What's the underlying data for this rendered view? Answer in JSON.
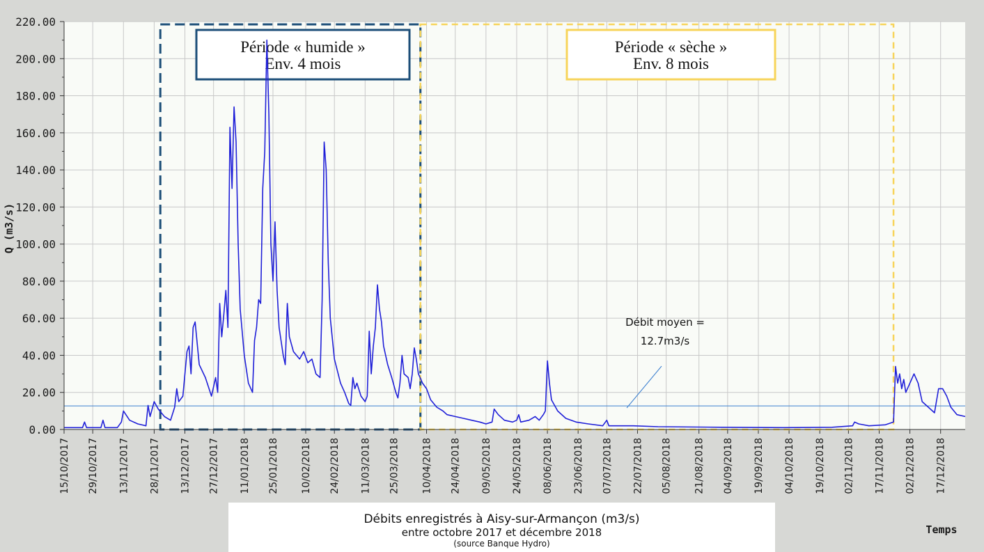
{
  "chart_data": {
    "type": "line",
    "ylabel": "Q (m3/s)",
    "xlabel": "Temps",
    "ylim": [
      0,
      220
    ],
    "y_ticks": [
      "0.00",
      "20.00",
      "40.00",
      "60.00",
      "80.00",
      "100.00",
      "120.00",
      "140.00",
      "160.00",
      "180.00",
      "200.00",
      "220.00"
    ],
    "xlim": [
      "2017-10-15",
      "2018-12-29"
    ],
    "x_tick_labels": [
      "15/10/2017",
      "29/10/2017",
      "13/11/2017",
      "28/11/2017",
      "13/12/2017",
      "27/12/2017",
      "11/01/2018",
      "25/01/2018",
      "10/02/2018",
      "24/02/2018",
      "11/03/2018",
      "25/03/2018",
      "10/04/2018",
      "24/04/2018",
      "09/05/2018",
      "24/05/2018",
      "08/06/2018",
      "23/06/2018",
      "07/07/2018",
      "22/07/2018",
      "05/08/2018",
      "21/08/2018",
      "04/09/2018",
      "19/09/2018",
      "04/10/2018",
      "19/10/2018",
      "02/11/2018",
      "17/11/2018",
      "02/12/2018",
      "17/12/2018"
    ],
    "grid": true,
    "series": [
      {
        "color": "#1f1fd8",
        "points": [
          [
            "2017-10-15",
            1
          ],
          [
            "2017-10-24",
            1
          ],
          [
            "2017-10-25",
            4
          ],
          [
            "2017-10-26",
            1
          ],
          [
            "2017-11-02",
            1
          ],
          [
            "2017-11-03",
            5
          ],
          [
            "2017-11-04",
            1
          ],
          [
            "2017-11-10",
            1
          ],
          [
            "2017-11-12",
            4
          ],
          [
            "2017-11-13",
            10
          ],
          [
            "2017-11-16",
            5
          ],
          [
            "2017-11-20",
            3
          ],
          [
            "2017-11-24",
            2
          ],
          [
            "2017-11-25",
            13
          ],
          [
            "2017-11-26",
            7
          ],
          [
            "2017-11-28",
            15
          ],
          [
            "2017-11-30",
            11
          ],
          [
            "2017-12-03",
            7
          ],
          [
            "2017-12-06",
            5
          ],
          [
            "2017-12-08",
            12
          ],
          [
            "2017-12-09",
            22
          ],
          [
            "2017-12-10",
            15
          ],
          [
            "2017-12-12",
            18
          ],
          [
            "2017-12-14",
            42
          ],
          [
            "2017-12-15",
            45
          ],
          [
            "2017-12-16",
            30
          ],
          [
            "2017-12-17",
            55
          ],
          [
            "2017-12-18",
            58
          ],
          [
            "2017-12-20",
            35
          ],
          [
            "2017-12-23",
            28
          ],
          [
            "2017-12-26",
            18
          ],
          [
            "2017-12-28",
            28
          ],
          [
            "2017-12-29",
            20
          ],
          [
            "2017-12-30",
            68
          ],
          [
            "2017-12-31",
            50
          ],
          [
            "2018-01-01",
            62
          ],
          [
            "2018-01-02",
            75
          ],
          [
            "2018-01-03",
            55
          ],
          [
            "2018-01-04",
            163
          ],
          [
            "2018-01-05",
            130
          ],
          [
            "2018-01-06",
            174
          ],
          [
            "2018-01-07",
            155
          ],
          [
            "2018-01-08",
            100
          ],
          [
            "2018-01-09",
            65
          ],
          [
            "2018-01-11",
            40
          ],
          [
            "2018-01-13",
            25
          ],
          [
            "2018-01-15",
            20
          ],
          [
            "2018-01-16",
            48
          ],
          [
            "2018-01-17",
            55
          ],
          [
            "2018-01-18",
            70
          ],
          [
            "2018-01-19",
            68
          ],
          [
            "2018-01-20",
            130
          ],
          [
            "2018-01-21",
            150
          ],
          [
            "2018-01-22",
            210
          ],
          [
            "2018-01-23",
            170
          ],
          [
            "2018-01-24",
            100
          ],
          [
            "2018-01-25",
            80
          ],
          [
            "2018-01-26",
            112
          ],
          [
            "2018-01-27",
            75
          ],
          [
            "2018-01-28",
            55
          ],
          [
            "2018-01-30",
            40
          ],
          [
            "2018-01-31",
            35
          ],
          [
            "2018-02-01",
            68
          ],
          [
            "2018-02-02",
            50
          ],
          [
            "2018-02-04",
            42
          ],
          [
            "2018-02-07",
            38
          ],
          [
            "2018-02-09",
            42
          ],
          [
            "2018-02-11",
            36
          ],
          [
            "2018-02-13",
            38
          ],
          [
            "2018-02-15",
            30
          ],
          [
            "2018-02-17",
            28
          ],
          [
            "2018-02-18",
            70
          ],
          [
            "2018-02-19",
            155
          ],
          [
            "2018-02-20",
            140
          ],
          [
            "2018-02-21",
            90
          ],
          [
            "2018-02-22",
            60
          ],
          [
            "2018-02-24",
            38
          ],
          [
            "2018-02-27",
            25
          ],
          [
            "2018-03-01",
            20
          ],
          [
            "2018-03-03",
            14
          ],
          [
            "2018-03-04",
            13
          ],
          [
            "2018-03-05",
            28
          ],
          [
            "2018-03-06",
            22
          ],
          [
            "2018-03-07",
            25
          ],
          [
            "2018-03-09",
            18
          ],
          [
            "2018-03-11",
            15
          ],
          [
            "2018-03-12",
            18
          ],
          [
            "2018-03-13",
            53
          ],
          [
            "2018-03-14",
            30
          ],
          [
            "2018-03-15",
            45
          ],
          [
            "2018-03-16",
            55
          ],
          [
            "2018-03-17",
            78
          ],
          [
            "2018-03-18",
            65
          ],
          [
            "2018-03-19",
            58
          ],
          [
            "2018-03-20",
            45
          ],
          [
            "2018-03-22",
            35
          ],
          [
            "2018-03-24",
            28
          ],
          [
            "2018-03-26",
            20
          ],
          [
            "2018-03-27",
            17
          ],
          [
            "2018-03-28",
            25
          ],
          [
            "2018-03-29",
            40
          ],
          [
            "2018-03-30",
            30
          ],
          [
            "2018-04-01",
            28
          ],
          [
            "2018-04-02",
            22
          ],
          [
            "2018-04-03",
            30
          ],
          [
            "2018-04-04",
            44
          ],
          [
            "2018-04-05",
            38
          ],
          [
            "2018-04-06",
            30
          ],
          [
            "2018-04-08",
            25
          ],
          [
            "2018-04-10",
            22
          ],
          [
            "2018-04-12",
            16
          ],
          [
            "2018-04-15",
            12
          ],
          [
            "2018-04-18",
            10
          ],
          [
            "2018-04-20",
            8
          ],
          [
            "2018-04-24",
            7
          ],
          [
            "2018-04-28",
            6
          ],
          [
            "2018-05-02",
            5
          ],
          [
            "2018-05-06",
            4
          ],
          [
            "2018-05-09",
            3
          ],
          [
            "2018-05-12",
            4
          ],
          [
            "2018-05-13",
            11
          ],
          [
            "2018-05-15",
            8
          ],
          [
            "2018-05-18",
            5
          ],
          [
            "2018-05-22",
            4
          ],
          [
            "2018-05-24",
            5
          ],
          [
            "2018-05-25",
            8
          ],
          [
            "2018-05-26",
            4
          ],
          [
            "2018-05-30",
            5
          ],
          [
            "2018-06-02",
            7
          ],
          [
            "2018-06-04",
            5
          ],
          [
            "2018-06-06",
            8
          ],
          [
            "2018-06-07",
            10
          ],
          [
            "2018-06-08",
            37
          ],
          [
            "2018-06-09",
            25
          ],
          [
            "2018-06-10",
            16
          ],
          [
            "2018-06-13",
            10
          ],
          [
            "2018-06-17",
            6
          ],
          [
            "2018-06-22",
            4
          ],
          [
            "2018-06-28",
            3
          ],
          [
            "2018-07-05",
            2
          ],
          [
            "2018-07-07",
            5
          ],
          [
            "2018-07-08",
            2
          ],
          [
            "2018-07-20",
            2
          ],
          [
            "2018-08-01",
            1.5
          ],
          [
            "2018-09-01",
            1.2
          ],
          [
            "2018-10-01",
            1
          ],
          [
            "2018-10-25",
            1.2
          ],
          [
            "2018-11-04",
            2
          ],
          [
            "2018-11-05",
            4
          ],
          [
            "2018-11-07",
            3
          ],
          [
            "2018-11-12",
            2
          ],
          [
            "2018-11-20",
            2.5
          ],
          [
            "2018-11-24",
            4
          ],
          [
            "2018-11-25",
            34
          ],
          [
            "2018-11-26",
            25
          ],
          [
            "2018-11-27",
            30
          ],
          [
            "2018-11-28",
            22
          ],
          [
            "2018-11-29",
            27
          ],
          [
            "2018-11-30",
            20
          ],
          [
            "2018-12-02",
            25
          ],
          [
            "2018-12-04",
            30
          ],
          [
            "2018-12-06",
            25
          ],
          [
            "2018-12-08",
            15
          ],
          [
            "2018-12-11",
            12
          ],
          [
            "2018-12-14",
            9
          ],
          [
            "2018-12-16",
            22
          ],
          [
            "2018-12-18",
            22
          ],
          [
            "2018-12-20",
            18
          ],
          [
            "2018-12-22",
            12
          ],
          [
            "2018-12-25",
            8
          ],
          [
            "2018-12-29",
            7
          ]
        ]
      }
    ],
    "mean_line": {
      "value": 12.7,
      "color": "#3a7fcf"
    },
    "annotations": {
      "mean_text_line1": "Débit moyen =",
      "mean_text_line2": "12.7m3/s"
    },
    "periods": [
      {
        "start": "2017-12-01",
        "end": "2018-04-07",
        "color": "#1c4e78",
        "line1": "Période « humide »",
        "line2": "Env. 4 mois"
      },
      {
        "start": "2018-04-07",
        "end": "2018-11-24",
        "color": "#f7d45a",
        "line1": "Période « sèche »",
        "line2": "Env. 8 mois"
      }
    ]
  },
  "caption": {
    "line1": "Débits enregistrés à Aisy-sur-Armançon  (m3/s)",
    "line2": "entre octobre 2017 et décembre 2018",
    "line3": "(source Banque Hydro)"
  },
  "colors": {
    "plot_bg": "#f9fbf7",
    "gridline": "#c8c8c8",
    "page_bg": "#d7d8d5"
  }
}
